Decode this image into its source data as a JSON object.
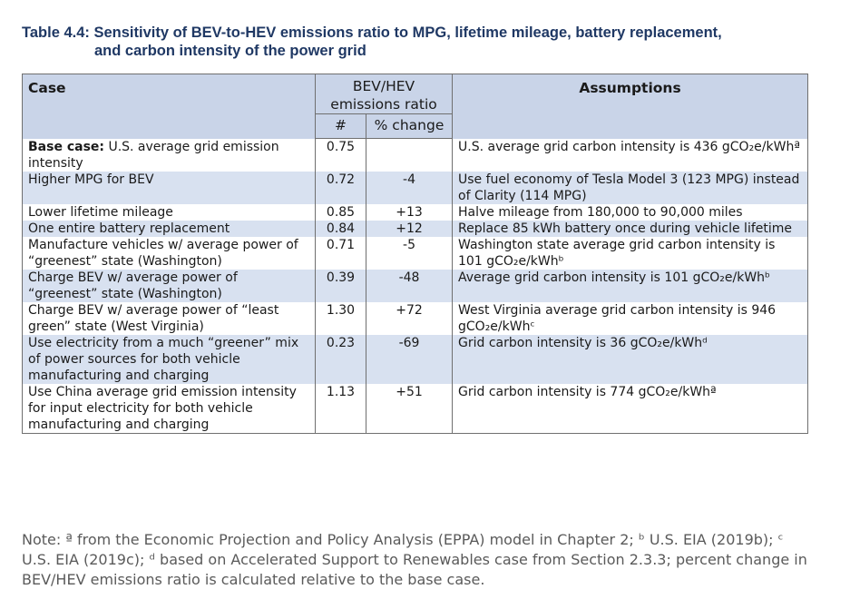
{
  "title": {
    "line1": "Table 4.4: Sensitivity of BEV-to-HEV emissions ratio to MPG, lifetime mileage, battery replacement,",
    "line2": "and carbon intensity of the power grid"
  },
  "header": {
    "case": "Case",
    "ratio_line1": "BEV/HEV",
    "ratio_line2": "emissions ratio",
    "num": "#",
    "pct": "% change",
    "assumptions": "Assumptions"
  },
  "rows": [
    {
      "case_bold": "Base case:",
      "case": " U.S. average grid emission intensity",
      "num": "0.75",
      "pct": "",
      "assumption": "U.S. average grid carbon intensity is 436 gCO₂e/kWhª",
      "alt": false
    },
    {
      "case_bold": "",
      "case": "Higher MPG for BEV",
      "num": "0.72",
      "pct": "-4",
      "assumption": "Use fuel economy of Tesla Model 3 (123 MPG) instead of Clarity (114 MPG)",
      "alt": true
    },
    {
      "case_bold": "",
      "case": "Lower lifetime mileage",
      "num": "0.85",
      "pct": "+13",
      "assumption": "Halve mileage from 180,000 to 90,000 miles",
      "alt": false
    },
    {
      "case_bold": "",
      "case": "One entire battery replacement",
      "num": "0.84",
      "pct": "+12",
      "assumption": "Replace 85 kWh battery once during vehicle lifetime",
      "alt": true
    },
    {
      "case_bold": "",
      "case": "Manufacture vehicles w/ average power of “greenest” state (Washington)",
      "num": "0.71",
      "pct": "-5",
      "assumption": "Washington state average grid carbon intensity is 101 gCO₂e/kWhᵇ",
      "alt": false
    },
    {
      "case_bold": "",
      "case": "Charge BEV w/ average power of “greenest” state (Washington)",
      "num": "0.39",
      "pct": "-48",
      "assumption": "Average grid carbon intensity is 101 gCO₂e/kWhᵇ",
      "alt": true
    },
    {
      "case_bold": "",
      "case": "Charge BEV w/ average power of “least green” state (West Virginia)",
      "num": "1.30",
      "pct": "+72",
      "assumption": "West Virginia average grid carbon intensity is 946 gCO₂e/kWhᶜ",
      "alt": false
    },
    {
      "case_bold": "",
      "case": "Use electricity from a much “greener” mix of power sources for both vehicle manufacturing and charging",
      "num": "0.23",
      "pct": "-69",
      "assumption": "Grid carbon intensity is 36 gCO₂e/kWhᵈ",
      "alt": true
    },
    {
      "case_bold": "",
      "case": "Use China average grid emission intensity for input electricity for both vehicle manufacturing and charging",
      "num": "1.13",
      "pct": "+51",
      "assumption": "Grid carbon intensity is 774 gCO₂e/kWhª",
      "alt": false
    }
  ],
  "note": "Note: ª from the Economic Projection and Policy Analysis (EPPA) model in Chapter 2; ᵇ U.S. EIA (2019b); ᶜ U.S. EIA (2019c); ᵈ based on Accelerated Support to Renewables case from Section 2.3.3; percent change in BEV/HEV emissions ratio is calculated relative to the base case."
}
